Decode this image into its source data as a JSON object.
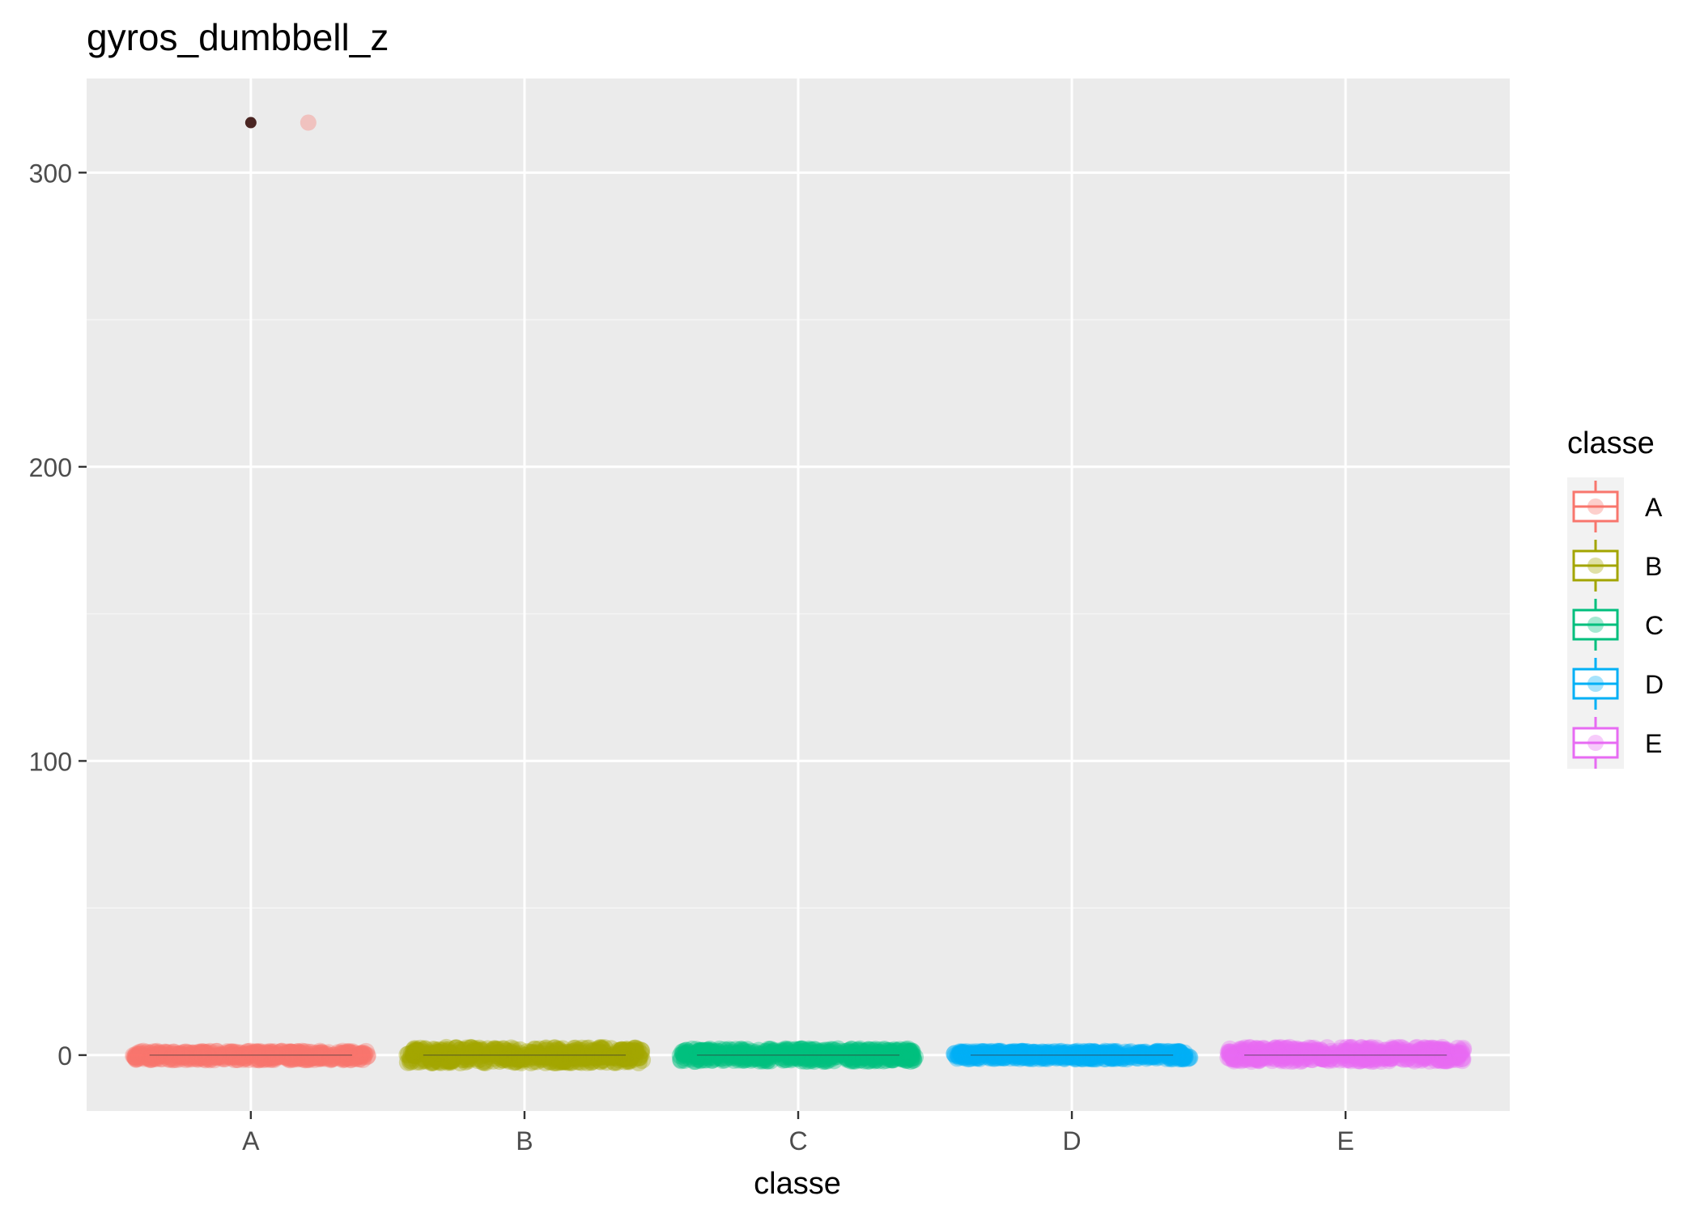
{
  "chart_data": {
    "type": "scatter",
    "title": "gyros_dumbbell_z",
    "xlabel": "classe",
    "ylabel": "",
    "categories": [
      "A",
      "B",
      "C",
      "D",
      "E"
    ],
    "ylim": [
      -19,
      332
    ],
    "yticks": [
      0,
      100,
      200,
      300
    ],
    "grid": true,
    "legend": {
      "title": "classe",
      "placement": "right",
      "entries": [
        {
          "label": "A",
          "color": "#F8766D"
        },
        {
          "label": "B",
          "color": "#A3A500"
        },
        {
          "label": "C",
          "color": "#00BF7D"
        },
        {
          "label": "D",
          "color": "#00B0F6"
        },
        {
          "label": "E",
          "color": "#E76BF3"
        }
      ]
    },
    "series": [
      {
        "category": "A",
        "color": "#F8766D",
        "median": 0,
        "jitter_range": [
          -0.5,
          0.5
        ],
        "value_range": [
          -1.5,
          1.2
        ],
        "outliers": [
          317
        ]
      },
      {
        "category": "B",
        "color": "#A3A500",
        "median": 0,
        "jitter_range": [
          -0.5,
          0.5
        ],
        "value_range": [
          -2.5,
          2.5
        ],
        "outliers": []
      },
      {
        "category": "C",
        "color": "#00BF7D",
        "median": 0,
        "jitter_range": [
          -0.5,
          0.5
        ],
        "value_range": [
          -2.0,
          2.0
        ],
        "outliers": []
      },
      {
        "category": "D",
        "color": "#00B0F6",
        "median": 0,
        "jitter_range": [
          -0.5,
          0.5
        ],
        "value_range": [
          -1.2,
          1.2
        ],
        "outliers": []
      },
      {
        "category": "E",
        "color": "#E76BF3",
        "median": 0,
        "jitter_range": [
          -0.5,
          0.5
        ],
        "value_range": [
          -2.0,
          2.5
        ],
        "outliers": []
      }
    ],
    "extra_points": [
      {
        "category": "A",
        "x_offset": 0.21,
        "y": 317,
        "color": "#F8766D"
      }
    ],
    "colors": {
      "panel": "#EBEBEB",
      "grid_major": "#FFFFFF",
      "grid_minor": "#F5F5F5",
      "axis_text": "#4D4D4D",
      "outlier": "#4A2522"
    }
  }
}
